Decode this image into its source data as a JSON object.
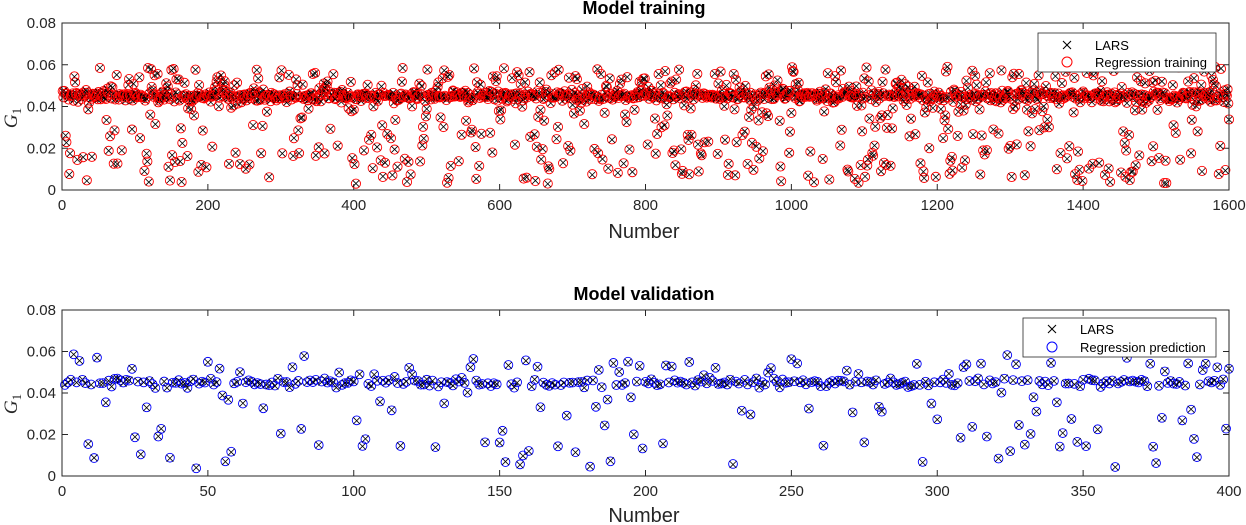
{
  "chart_data": [
    {
      "type": "scatter",
      "title": "Model training",
      "xlabel": "Number",
      "ylabel": "G",
      "ylabel_subscript": "1",
      "xlim": [
        0,
        1600
      ],
      "ylim": [
        0,
        0.08
      ],
      "xticks": [
        0,
        200,
        400,
        600,
        800,
        1000,
        1200,
        1400,
        1600
      ],
      "yticks": [
        0,
        0.02,
        0.04,
        0.06,
        0.08
      ],
      "xtick_labels": [
        "0",
        "200",
        "400",
        "600",
        "800",
        "1000",
        "1200",
        "1400",
        "1600"
      ],
      "ytick_labels": [
        "0",
        "0.02",
        "0.04",
        "0.06",
        "0.08"
      ],
      "legend": {
        "position": "top-right",
        "entries": [
          {
            "label": "LARS",
            "marker": "x",
            "color": "#000000"
          },
          {
            "label": "Regression training",
            "marker": "o",
            "color": "#ff0000"
          }
        ]
      },
      "n_points": 1600,
      "seed": 7,
      "band_center": 0.045,
      "band_spread": 0.0025,
      "band_fraction": 0.6,
      "scatter_range": [
        0.003,
        0.058
      ],
      "series": [
        {
          "name": "LARS",
          "marker": "x",
          "color": "#000000"
        },
        {
          "name": "Regression training",
          "marker": "o",
          "color": "#ff0000"
        }
      ]
    },
    {
      "type": "scatter",
      "title": "Model validation",
      "xlabel": "Number",
      "ylabel": "G",
      "ylabel_subscript": "1",
      "xlim": [
        0,
        400
      ],
      "ylim": [
        0,
        0.08
      ],
      "xticks": [
        0,
        50,
        100,
        150,
        200,
        250,
        300,
        350,
        400
      ],
      "yticks": [
        0,
        0.02,
        0.04,
        0.06,
        0.08
      ],
      "xtick_labels": [
        "0",
        "50",
        "100",
        "150",
        "200",
        "250",
        "300",
        "350",
        "400"
      ],
      "ytick_labels": [
        "0",
        "0.02",
        "0.04",
        "0.06",
        "0.08"
      ],
      "legend": {
        "position": "top-right",
        "entries": [
          {
            "label": "LARS",
            "marker": "x",
            "color": "#000000"
          },
          {
            "label": "Regression prediction",
            "marker": "o",
            "color": "#0000ff"
          }
        ]
      },
      "n_points": 400,
      "seed": 31,
      "band_center": 0.045,
      "band_spread": 0.002,
      "band_fraction": 0.6,
      "scatter_range": [
        0.003,
        0.056
      ],
      "series": [
        {
          "name": "LARS",
          "marker": "x",
          "color": "#000000"
        },
        {
          "name": "Regression prediction",
          "marker": "o",
          "color": "#0000ff"
        }
      ]
    }
  ]
}
